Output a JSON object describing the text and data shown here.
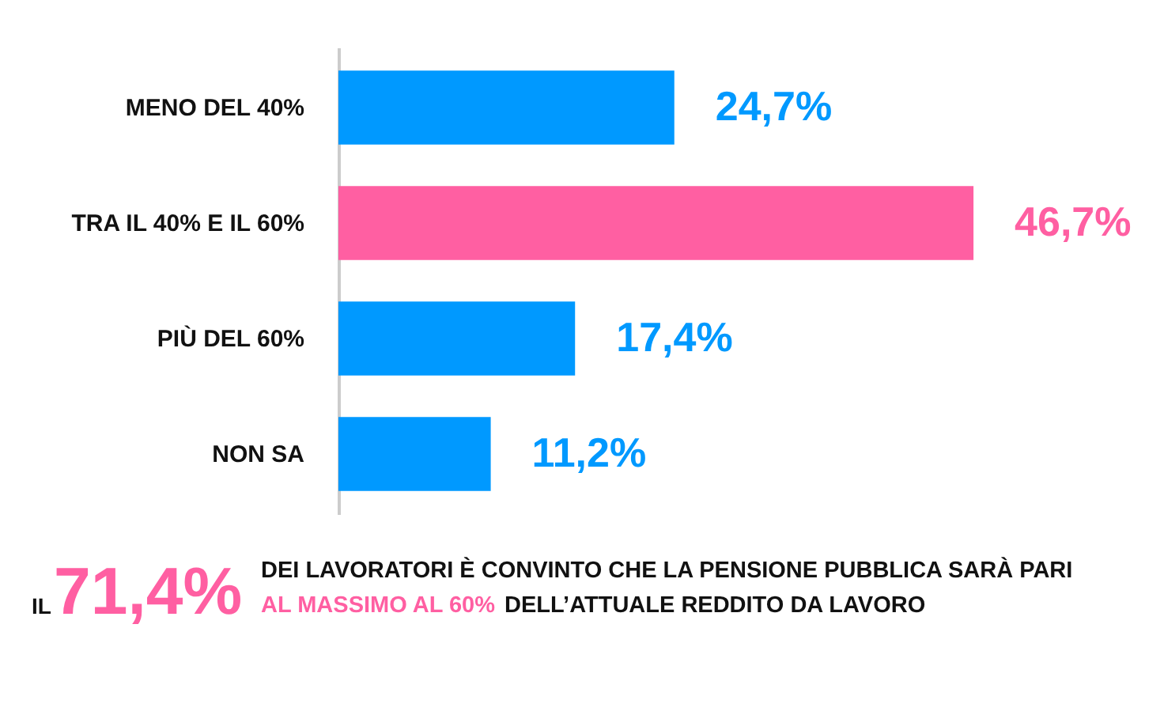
{
  "chart_data": {
    "type": "bar",
    "orientation": "horizontal",
    "categories": [
      "MENO DEL 40%",
      "TRA IL 40% E IL 60%",
      "PIÙ DEL 60%",
      "NON SA"
    ],
    "values": [
      24.7,
      46.7,
      17.4,
      11.2
    ],
    "colors": [
      "#0099ff",
      "#ff5fa2",
      "#0099ff",
      "#0099ff"
    ],
    "value_labels": [
      "24,7%",
      "46,7%",
      "17,4%",
      "11,2%"
    ],
    "annotations": [
      "IL",
      "71,4%",
      "DEI LAVORATORI È CONVINTO CHE LA PENSIONE PUBBLICA SARÀ PARI",
      "AL MASSIMO AL  60%",
      "DELL’ATTUALE REDDITO DA LAVORO"
    ]
  }
}
